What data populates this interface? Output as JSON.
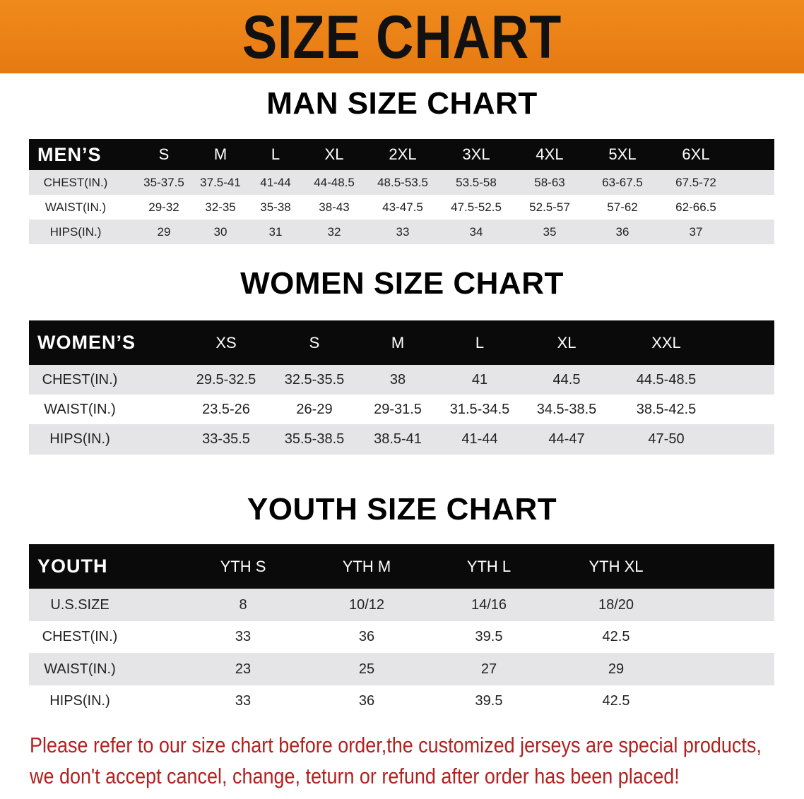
{
  "banner": {
    "title": "SIZE CHART",
    "color": "#ec8118"
  },
  "men": {
    "title": "MAN SIZE CHART",
    "header": [
      "MEN’S",
      "S",
      "M",
      "L",
      "XL",
      "2XL",
      "3XL",
      "4XL",
      "5XL",
      "6XL"
    ],
    "rows": [
      [
        "CHEST(IN.)",
        "35-37.5",
        "37.5-41",
        "41-44",
        "44-48.5",
        "48.5-53.5",
        "53.5-58",
        "58-63",
        "63-67.5",
        "67.5-72"
      ],
      [
        "WAIST(IN.)",
        "29-32",
        "32-35",
        "35-38",
        "38-43",
        "43-47.5",
        "47.5-52.5",
        "52.5-57",
        "57-62",
        "62-66.5"
      ],
      [
        "HIPS(IN.)",
        "29",
        "30",
        "31",
        "32",
        "33",
        "34",
        "35",
        "36",
        "37"
      ]
    ]
  },
  "women": {
    "title": "WOMEN SIZE CHART",
    "header": [
      "WOMEN’S",
      "XS",
      "S",
      "M",
      "L",
      "XL",
      "XXL"
    ],
    "rows": [
      [
        "CHEST(IN.)",
        "29.5-32.5",
        "32.5-35.5",
        "38",
        "41",
        "44.5",
        "44.5-48.5"
      ],
      [
        "WAIST(IN.)",
        "23.5-26",
        "26-29",
        "29-31.5",
        "31.5-34.5",
        "34.5-38.5",
        "38.5-42.5"
      ],
      [
        "HIPS(IN.)",
        "33-35.5",
        "35.5-38.5",
        "38.5-41",
        "41-44",
        "44-47",
        "47-50"
      ]
    ]
  },
  "youth": {
    "title": "YOUTH SIZE CHART",
    "header": [
      "YOUTH",
      "YTH S",
      "YTH M",
      "YTH L",
      "YTH XL"
    ],
    "rows": [
      [
        "U.S.SIZE",
        "8",
        "10/12",
        "14/16",
        "18/20"
      ],
      [
        "CHEST(IN.)",
        "33",
        "36",
        "39.5",
        "42.5"
      ],
      [
        "WAIST(IN.)",
        "23",
        "25",
        "27",
        "29"
      ],
      [
        "HIPS(IN.)",
        "33",
        "36",
        "39.5",
        "42.5"
      ]
    ]
  },
  "note": {
    "line1": "Please refer to our size chart before order,the customized jerseys are special products,",
    "line2": "we don't accept cancel, change, teturn or refund after order has been placed!",
    "color": "#b3201f"
  }
}
